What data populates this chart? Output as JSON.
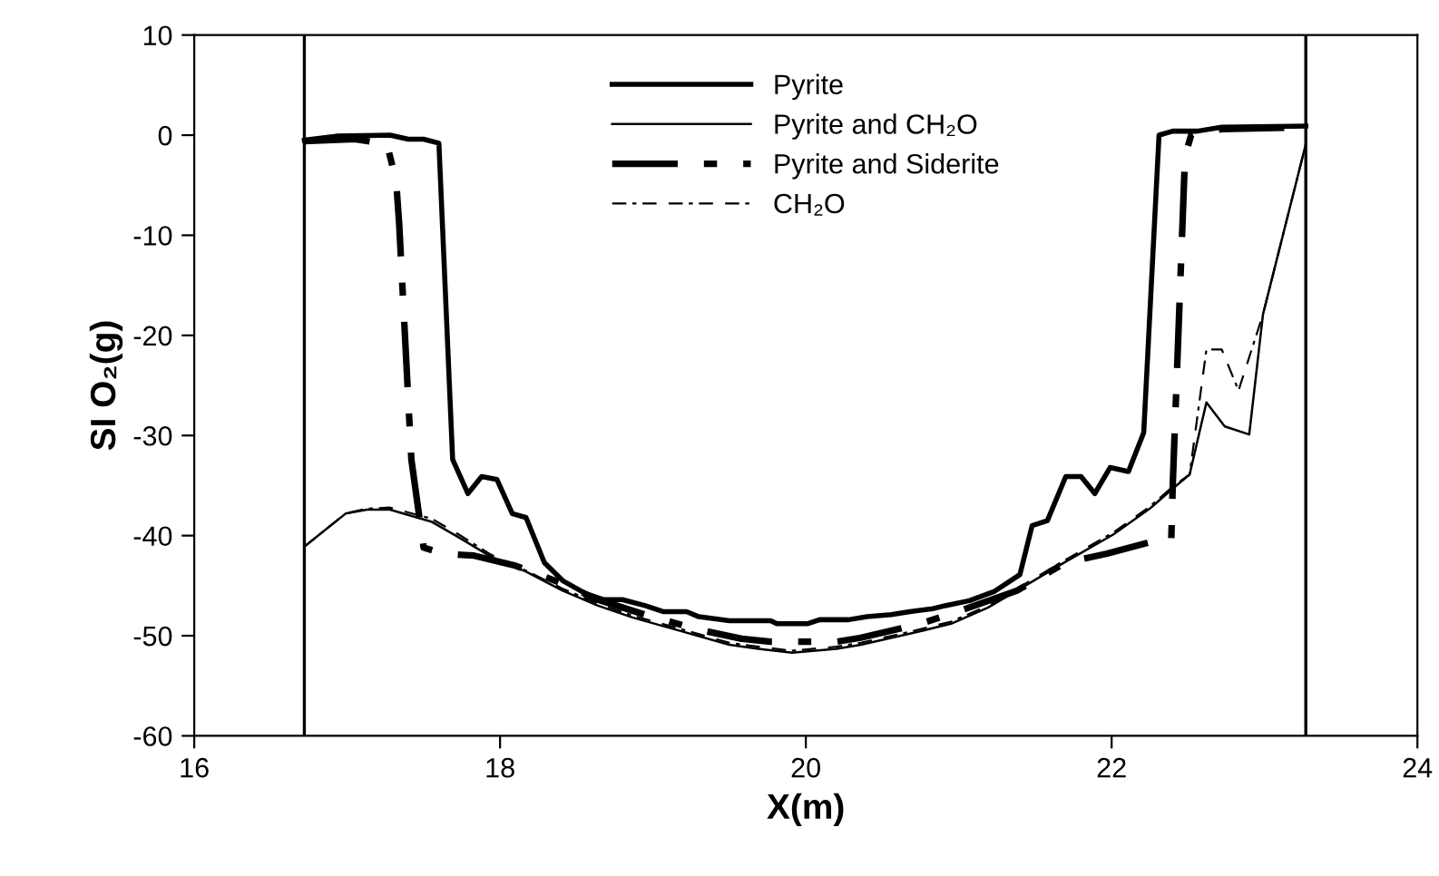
{
  "chart_data": {
    "type": "line",
    "xlabel": "X(m)",
    "ylabel": "SI O₂(g)",
    "xlim": [
      16,
      24
    ],
    "xticks": [
      16,
      18,
      20,
      22,
      24
    ],
    "ylim": [
      -60,
      10
    ],
    "yticks": [
      -60,
      -50,
      -40,
      -30,
      -20,
      -10,
      0,
      10
    ],
    "grid": false,
    "legend": "top",
    "marker": "none",
    "ref_lines": [
      {
        "axis": "x",
        "value": 16.72,
        "color": "#000000"
      },
      {
        "axis": "x",
        "value": 23.27,
        "color": "#000000"
      }
    ],
    "series": [
      {
        "name": "Pyrite",
        "color": "#000000",
        "line_style": "solid",
        "x": [
          16.72,
          16.93,
          17.28,
          17.4,
          17.5,
          17.6,
          17.69,
          17.79,
          17.88,
          17.98,
          18.08,
          18.17,
          18.29,
          18.41,
          18.56,
          18.68,
          18.8,
          18.95,
          19.07,
          19.22,
          19.3,
          19.5,
          19.77,
          19.81,
          20.01,
          20.09,
          20.28,
          20.4,
          20.56,
          20.68,
          20.83,
          20.91,
          21.07,
          21.23,
          21.4,
          21.48,
          21.58,
          21.7,
          21.8,
          21.89,
          21.99,
          22.11,
          22.21,
          22.31,
          22.4,
          22.56,
          22.72,
          23.27
        ],
        "values": [
          -0.5,
          -0.1,
          0,
          -0.4,
          -0.4,
          -0.8,
          -32.4,
          -35.8,
          -34.1,
          -34.4,
          -37.8,
          -38.2,
          -42.7,
          -44.5,
          -45.8,
          -46.4,
          -46.4,
          -47,
          -47.6,
          -47.6,
          -48.1,
          -48.5,
          -48.5,
          -48.8,
          -48.8,
          -48.4,
          -48.4,
          -48.1,
          -47.9,
          -47.6,
          -47.3,
          -47,
          -46.5,
          -45.6,
          -43.9,
          -39,
          -38.5,
          -34.1,
          -34.1,
          -35.8,
          -33.2,
          -33.6,
          -29.7,
          0,
          0.4,
          0.4,
          0.8,
          0.9
        ]
      },
      {
        "name": "Pyrite and CH₂O",
        "color": "#000000",
        "line_style": "solid",
        "x": [
          16.72,
          16.99,
          17.13,
          17.28,
          17.55,
          17.71,
          17.94,
          18.17,
          18.41,
          18.64,
          18.87,
          19.15,
          19.5,
          19.69,
          19.91,
          20.2,
          20.36,
          20.68,
          20.95,
          21.19,
          21.38,
          21.7,
          22.01,
          22.25,
          22.4,
          22.51,
          22.62,
          22.74,
          22.9,
          22.99,
          23.27
        ],
        "values": [
          -41.1,
          -37.8,
          -37.4,
          -37.4,
          -38.6,
          -40,
          -42.1,
          -43.6,
          -45.5,
          -47,
          -48.2,
          -49.4,
          -50.9,
          -51.3,
          -51.7,
          -51.3,
          -50.9,
          -49.8,
          -48.8,
          -47.2,
          -45.5,
          -42.6,
          -39.9,
          -37.3,
          -35.3,
          -33.9,
          -26.7,
          -29.1,
          -29.9,
          -17.9,
          -0.9
        ]
      },
      {
        "name": "Pyrite and Siderite",
        "color": "#000000",
        "line_style": "dashdot",
        "x": [
          16.72,
          17.05,
          17.26,
          17.32,
          17.34,
          17.42,
          17.5,
          17.63,
          17.83,
          18.1,
          18.41,
          18.64,
          18.95,
          19.3,
          19.58,
          19.77,
          20.2,
          20.36,
          20.75,
          20.99,
          21.38,
          21.7,
          21.97,
          22.29,
          22.39,
          22.4,
          22.48,
          22.52,
          22.72,
          23.27
        ],
        "values": [
          -0.6,
          -0.4,
          -0.9,
          -4.5,
          -8.8,
          -32.4,
          -41.2,
          -41.8,
          -42,
          -43,
          -44.8,
          -46.4,
          -47.9,
          -49.4,
          -50.3,
          -50.6,
          -50.6,
          -50.2,
          -48.8,
          -47.6,
          -45.5,
          -42.7,
          -41.8,
          -40.5,
          -40.5,
          -34.8,
          -2.1,
          0,
          0.6,
          0.8
        ]
      },
      {
        "name": "CH₂O",
        "color": "#000000",
        "line_style": "dashdot",
        "x": [
          16.72,
          16.99,
          17.13,
          17.28,
          17.55,
          17.71,
          17.94,
          18.17,
          18.41,
          18.64,
          18.87,
          19.15,
          19.5,
          19.69,
          19.91,
          20.2,
          20.36,
          20.68,
          20.95,
          21.19,
          21.38,
          21.7,
          22.01,
          22.25,
          22.4,
          22.51,
          22.62,
          22.72,
          22.83,
          22.99,
          23.27
        ],
        "values": [
          -41.1,
          -37.8,
          -37.3,
          -37.2,
          -38.3,
          -39.7,
          -41.9,
          -43.5,
          -45.3,
          -46.8,
          -48,
          -49.2,
          -50.7,
          -51.1,
          -51.5,
          -51.1,
          -50.7,
          -49.6,
          -48.6,
          -47,
          -45.3,
          -42.4,
          -39.7,
          -37.1,
          -35.1,
          -33.9,
          -21.4,
          -21.4,
          -25.5,
          -17.9,
          -0.9
        ]
      }
    ]
  }
}
